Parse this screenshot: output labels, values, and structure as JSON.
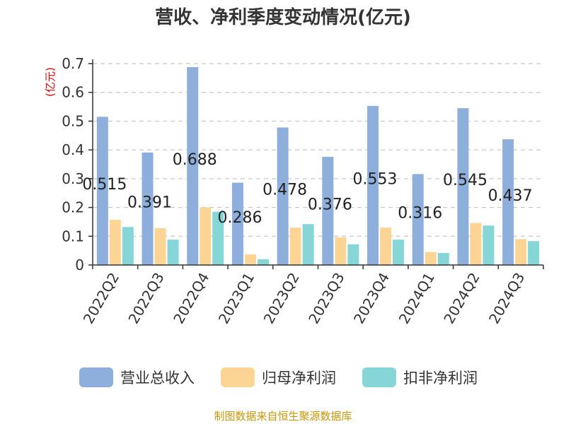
{
  "chart_data": {
    "type": "bar",
    "title": "营收、净利季度变动情况(亿元)",
    "unit_label": "(亿元)",
    "categories": [
      "2022Q2",
      "2022Q3",
      "2022Q4",
      "2023Q1",
      "2023Q2",
      "2023Q3",
      "2023Q4",
      "2024Q1",
      "2024Q2",
      "2024Q3"
    ],
    "series": [
      {
        "name": "营业总收入",
        "color": "#8eaedb",
        "values": [
          0.515,
          0.391,
          0.688,
          0.286,
          0.478,
          0.376,
          0.553,
          0.316,
          0.545,
          0.437
        ],
        "data_labels": [
          "0.515",
          "0.391",
          "0.688",
          "0.286",
          "0.478",
          "0.376",
          "0.553",
          "0.316",
          "0.545",
          "0.437"
        ]
      },
      {
        "name": "归母净利润",
        "color": "#fcd595",
        "values": [
          0.157,
          0.128,
          0.2,
          0.037,
          0.13,
          0.096,
          0.13,
          0.045,
          0.146,
          0.09
        ]
      },
      {
        "name": "扣非净利润",
        "color": "#86d6d8",
        "values": [
          0.132,
          0.088,
          0.185,
          0.02,
          0.142,
          0.072,
          0.088,
          0.042,
          0.137,
          0.083
        ]
      }
    ],
    "yticks": [
      "0",
      "0.1",
      "0.2",
      "0.3",
      "0.4",
      "0.5",
      "0.6",
      "0.7"
    ],
    "ylim": [
      0,
      0.7
    ],
    "grid": true,
    "legend_position": "bottom",
    "source": "制图数据来自恒生聚源数据库"
  }
}
